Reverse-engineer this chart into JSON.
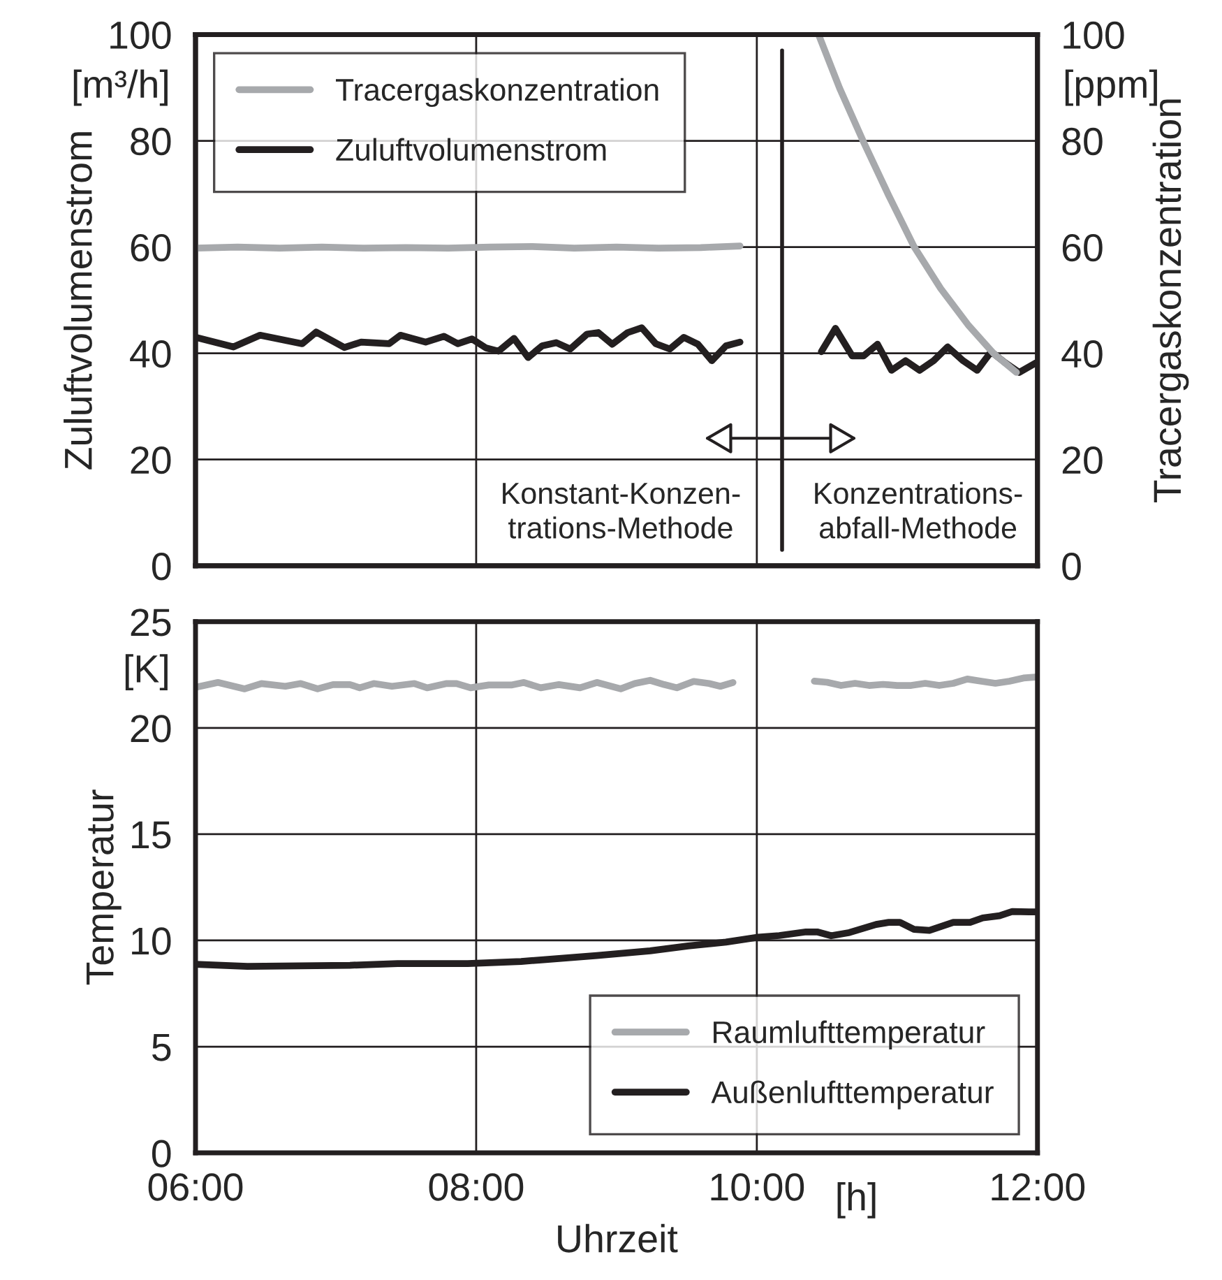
{
  "chart_data": [
    {
      "type": "line",
      "xlim": [
        6,
        12
      ],
      "xticks": [
        {
          "value": 6,
          "label": null
        },
        {
          "value": 8,
          "label": null
        },
        {
          "value": 10,
          "label": null
        },
        {
          "value": 12,
          "label": null
        }
      ],
      "tick_labels": "y",
      "ylabel": "Zuluftvolumenstrom",
      "y2label": "Tracergaskonzentration",
      "ylim": [
        0,
        100
      ],
      "yticks": [
        0,
        20,
        40,
        60,
        80,
        100
      ],
      "y2lim": [
        0,
        100
      ],
      "y2ticks": [
        0,
        20,
        40,
        60,
        80,
        100
      ],
      "grid": true,
      "legend": "top left",
      "series": [
        {
          "name": "Tracergaskonzentration",
          "color": "#a7a9ac",
          "axis": "y2",
          "x": [
            6.0,
            6.3,
            6.6,
            6.9,
            7.2,
            7.5,
            7.8,
            8.1,
            8.4,
            8.7,
            9.0,
            9.3,
            9.6,
            9.88,
            9.89,
            10.44,
            10.59,
            10.76,
            10.94,
            11.12,
            11.31,
            11.51,
            11.69,
            11.85
          ],
          "values": [
            59.8,
            60.0,
            59.8,
            60.0,
            59.8,
            59.9,
            59.8,
            60.0,
            60.1,
            59.8,
            60.0,
            59.8,
            59.9,
            60.2,
            null,
            100,
            89.9,
            79.8,
            69.7,
            60.1,
            52.2,
            45.2,
            39.9,
            36.4
          ]
        },
        {
          "name": "Zuluftvolumenstrom",
          "color": "#231f20",
          "x": [
            6.0,
            6.27,
            6.46,
            6.76,
            6.86,
            7.06,
            7.18,
            7.38,
            7.46,
            7.64,
            7.77,
            7.87,
            7.97,
            8.07,
            8.16,
            8.27,
            8.37,
            8.47,
            8.57,
            8.67,
            8.79,
            8.87,
            8.97,
            9.08,
            9.18,
            9.28,
            9.38,
            9.48,
            9.58,
            9.68,
            9.78,
            9.88,
            9.9,
            10.46,
            10.56,
            10.68,
            10.76,
            10.86,
            10.96,
            11.06,
            11.16,
            11.26,
            11.36,
            11.47,
            11.57,
            11.67,
            11.77,
            11.87,
            11.99
          ],
          "values": [
            43.0,
            41.2,
            43.4,
            41.8,
            44.0,
            41.1,
            42.1,
            41.8,
            43.4,
            42.1,
            43.2,
            41.8,
            42.7,
            41.0,
            40.4,
            42.8,
            39.2,
            41.4,
            42.0,
            40.8,
            43.6,
            43.9,
            41.7,
            43.9,
            44.8,
            41.8,
            40.8,
            43.0,
            41.7,
            38.6,
            41.4,
            42.1,
            null,
            40.3,
            44.7,
            39.5,
            39.5,
            41.7,
            36.8,
            38.6,
            36.8,
            38.6,
            41.2,
            38.6,
            36.8,
            40.3,
            38.2,
            36.4,
            38.2
          ]
        }
      ],
      "ref_lines": [
        {
          "axis": "x",
          "value": 10.18,
          "color": "#231f20"
        }
      ],
      "annotations": [
        "[m³/h]",
        "[ppm]",
        "Konstant-Konzen-\ntrations-Methode",
        "Konzentrations-\nabfall-Methode"
      ]
    },
    {
      "type": "line",
      "xlim": [
        6,
        12
      ],
      "xticks": [
        {
          "value": 6,
          "label": "06:00"
        },
        {
          "value": 8,
          "label": "08:00"
        },
        {
          "value": 10,
          "label": "10:00"
        },
        {
          "value": 12,
          "label": "12:00"
        }
      ],
      "xlabel": "Uhrzeit",
      "ylabel": "Temperatur",
      "ylim": [
        0,
        25
      ],
      "yticks": [
        0,
        5,
        10,
        15,
        20,
        25
      ],
      "grid": true,
      "legend": "bottom right",
      "series": [
        {
          "name": "Raumlufttemperatur",
          "color": "#a7a9ac",
          "x": [
            6.0,
            6.16,
            6.35,
            6.47,
            6.64,
            6.75,
            6.87,
            6.98,
            7.1,
            7.17,
            7.27,
            7.4,
            7.56,
            7.65,
            7.79,
            7.86,
            7.96,
            8.09,
            8.25,
            8.34,
            8.46,
            8.59,
            8.74,
            8.86,
            9.03,
            9.13,
            9.24,
            9.34,
            9.43,
            9.55,
            9.66,
            9.74,
            9.83,
            9.85,
            10.41,
            10.5,
            10.6,
            10.7,
            10.8,
            10.9,
            11.0,
            11.1,
            11.2,
            11.3,
            11.4,
            11.5,
            11.6,
            11.7,
            11.8,
            11.9,
            12.0
          ],
          "values": [
            21.91,
            22.14,
            21.84,
            22.09,
            21.96,
            22.09,
            21.84,
            22.04,
            22.04,
            21.89,
            22.09,
            21.96,
            22.09,
            21.89,
            22.09,
            22.09,
            21.89,
            22.02,
            22.02,
            22.14,
            21.89,
            22.04,
            21.89,
            22.14,
            21.84,
            22.09,
            22.24,
            22.04,
            21.89,
            22.19,
            22.09,
            21.96,
            22.14,
            null,
            22.2,
            22.15,
            22.0,
            22.1,
            22.0,
            22.05,
            22.0,
            22.0,
            22.1,
            22.0,
            22.1,
            22.3,
            22.2,
            22.1,
            22.2,
            22.35,
            22.4
          ]
        },
        {
          "name": "Außenlufttemperatur",
          "color": "#231f20",
          "x": [
            6.0,
            6.37,
            7.1,
            7.44,
            7.94,
            8.32,
            8.48,
            8.86,
            9.24,
            9.51,
            9.78,
            10.01,
            10.16,
            10.35,
            10.43,
            10.53,
            10.66,
            10.85,
            10.94,
            11.02,
            11.12,
            11.23,
            11.4,
            11.52,
            11.61,
            11.73,
            11.82,
            11.94,
            12.0
          ],
          "values": [
            8.88,
            8.78,
            8.83,
            8.91,
            8.91,
            9.01,
            9.09,
            9.29,
            9.51,
            9.74,
            9.92,
            10.15,
            10.23,
            10.4,
            10.4,
            10.22,
            10.37,
            10.75,
            10.85,
            10.85,
            10.52,
            10.47,
            10.85,
            10.85,
            11.06,
            11.16,
            11.36,
            11.34,
            11.34
          ]
        }
      ],
      "annotations": [
        "[K]",
        "[h]"
      ]
    }
  ]
}
